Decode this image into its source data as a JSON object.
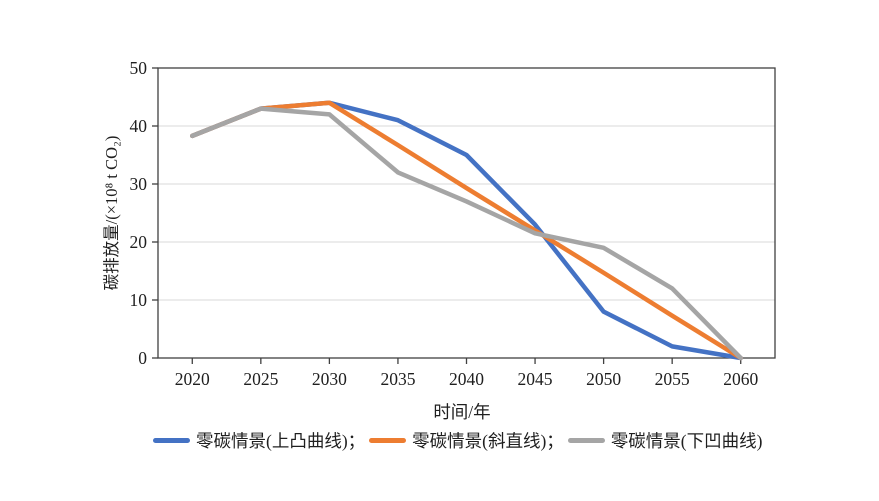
{
  "figure": {
    "background_color": "#ffffff"
  },
  "chart_data": {
    "type": "line",
    "title": "",
    "xlabel": "时间/年",
    "ylabel": "碳排放量/(×10⁸ t CO₂)",
    "categories": [
      2020,
      2025,
      2030,
      2035,
      2040,
      2045,
      2050,
      2055,
      2060
    ],
    "x_tick_labels": [
      "2020",
      "2025",
      "2030",
      "2035",
      "2040",
      "2045",
      "2050",
      "2055",
      "2060"
    ],
    "y_ticks": [
      0,
      10,
      20,
      30,
      40,
      50
    ],
    "ylim": [
      0,
      50
    ],
    "grid": "horizontal gridlines at 10,20,30,40",
    "legend_position": "bottom-center",
    "series": [
      {
        "name": "零碳情景(上凸曲线)",
        "legend_label": "零碳情景(上凸曲线)；",
        "color": "#4472C4",
        "values": [
          38.3,
          43,
          44,
          41,
          35,
          23,
          8,
          2,
          0
        ]
      },
      {
        "name": "零碳情景(斜直线)",
        "legend_label": "零碳情景(斜直线)；",
        "color": "#ED7D31",
        "values": [
          38.3,
          43,
          44,
          36.7,
          29.3,
          22,
          14.7,
          7.3,
          0
        ]
      },
      {
        "name": "零碳情景(下凹曲线)",
        "legend_label": "零碳情景(下凹曲线)",
        "color": "#A5A5A5",
        "values": [
          38.3,
          43,
          42,
          32,
          27,
          21.5,
          19,
          12,
          0
        ]
      }
    ],
    "style": {
      "axis_color": "#404040",
      "gridline_color": "#d9d9d9",
      "text_color": "#1f1f1f",
      "line_width": 4.5
    }
  }
}
